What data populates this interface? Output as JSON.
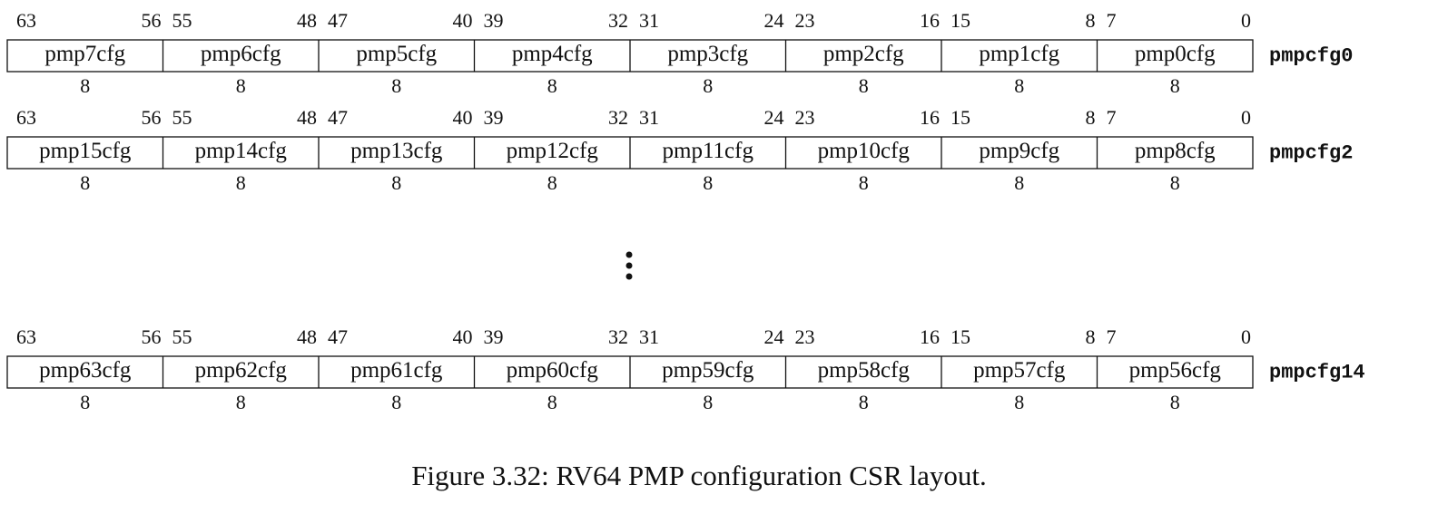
{
  "registers": [
    {
      "name": "pmpcfg0",
      "fields": [
        {
          "label": "pmp7cfg",
          "msb": 63,
          "lsb": 56,
          "width": 8
        },
        {
          "label": "pmp6cfg",
          "msb": 55,
          "lsb": 48,
          "width": 8
        },
        {
          "label": "pmp5cfg",
          "msb": 47,
          "lsb": 40,
          "width": 8
        },
        {
          "label": "pmp4cfg",
          "msb": 39,
          "lsb": 32,
          "width": 8
        },
        {
          "label": "pmp3cfg",
          "msb": 31,
          "lsb": 24,
          "width": 8
        },
        {
          "label": "pmp2cfg",
          "msb": 23,
          "lsb": 16,
          "width": 8
        },
        {
          "label": "pmp1cfg",
          "msb": 15,
          "lsb": 8,
          "width": 8
        },
        {
          "label": "pmp0cfg",
          "msb": 7,
          "lsb": 0,
          "width": 8
        }
      ]
    },
    {
      "name": "pmpcfg2",
      "fields": [
        {
          "label": "pmp15cfg",
          "msb": 63,
          "lsb": 56,
          "width": 8
        },
        {
          "label": "pmp14cfg",
          "msb": 55,
          "lsb": 48,
          "width": 8
        },
        {
          "label": "pmp13cfg",
          "msb": 47,
          "lsb": 40,
          "width": 8
        },
        {
          "label": "pmp12cfg",
          "msb": 39,
          "lsb": 32,
          "width": 8
        },
        {
          "label": "pmp11cfg",
          "msb": 31,
          "lsb": 24,
          "width": 8
        },
        {
          "label": "pmp10cfg",
          "msb": 23,
          "lsb": 16,
          "width": 8
        },
        {
          "label": "pmp9cfg",
          "msb": 15,
          "lsb": 8,
          "width": 8
        },
        {
          "label": "pmp8cfg",
          "msb": 7,
          "lsb": 0,
          "width": 8
        }
      ]
    },
    {
      "name": "pmpcfg14",
      "fields": [
        {
          "label": "pmp63cfg",
          "msb": 63,
          "lsb": 56,
          "width": 8
        },
        {
          "label": "pmp62cfg",
          "msb": 55,
          "lsb": 48,
          "width": 8
        },
        {
          "label": "pmp61cfg",
          "msb": 47,
          "lsb": 40,
          "width": 8
        },
        {
          "label": "pmp60cfg",
          "msb": 39,
          "lsb": 32,
          "width": 8
        },
        {
          "label": "pmp59cfg",
          "msb": 31,
          "lsb": 24,
          "width": 8
        },
        {
          "label": "pmp58cfg",
          "msb": 23,
          "lsb": 16,
          "width": 8
        },
        {
          "label": "pmp57cfg",
          "msb": 15,
          "lsb": 8,
          "width": 8
        },
        {
          "label": "pmp56cfg",
          "msb": 7,
          "lsb": 0,
          "width": 8
        }
      ]
    }
  ],
  "caption": "Figure 3.32: RV64 PMP configuration CSR layout."
}
